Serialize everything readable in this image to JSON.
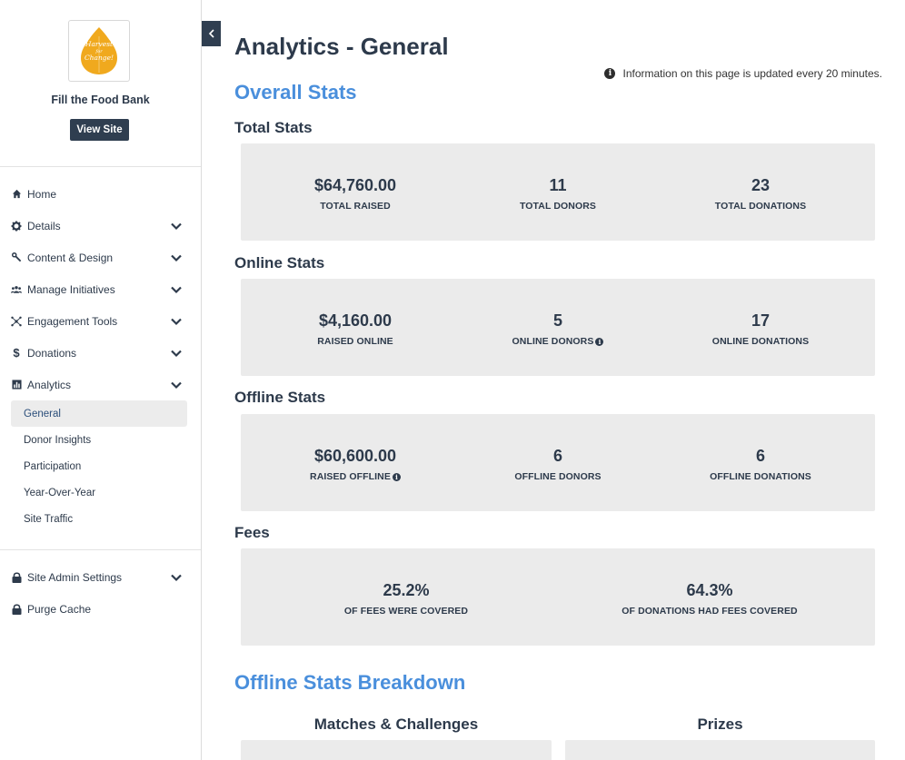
{
  "sidebar": {
    "org_name": "Fill the Food Bank",
    "logo_text": [
      "Harvest",
      "for",
      "Change!"
    ],
    "view_site_label": "View Site",
    "nav": [
      {
        "label": "Home",
        "icon": "home-icon"
      },
      {
        "label": "Details",
        "icon": "gear-icon"
      },
      {
        "label": "Content & Design",
        "icon": "wrench-icon"
      },
      {
        "label": "Manage Initiatives",
        "icon": "users-icon"
      },
      {
        "label": "Engagement Tools",
        "icon": "network-icon"
      },
      {
        "label": "Donations",
        "icon": "dollar-icon"
      },
      {
        "label": "Analytics",
        "icon": "bar-chart-icon"
      }
    ],
    "analytics_sub": [
      "General",
      "Donor Insights",
      "Participation",
      "Year-Over-Year",
      "Site Traffic"
    ],
    "nav_bottom": [
      {
        "label": "Site Admin Settings",
        "icon": "lock-icon"
      },
      {
        "label": "Purge Cache",
        "icon": "lock-icon"
      }
    ]
  },
  "main": {
    "title": "Analytics - General",
    "info_note": "Information on this page is updated every 20 minutes.",
    "overall_title": "Overall Stats",
    "total": {
      "title": "Total Stats",
      "stats": [
        {
          "value": "$64,760.00",
          "label": "TOTAL RAISED"
        },
        {
          "value": "11",
          "label": "TOTAL DONORS"
        },
        {
          "value": "23",
          "label": "TOTAL DONATIONS"
        }
      ]
    },
    "online": {
      "title": "Online Stats",
      "stats": [
        {
          "value": "$4,160.00",
          "label": "RAISED ONLINE"
        },
        {
          "value": "5",
          "label": "ONLINE DONORS"
        },
        {
          "value": "17",
          "label": "ONLINE DONATIONS"
        }
      ]
    },
    "offline": {
      "title": "Offline Stats",
      "stats": [
        {
          "value": "$60,600.00",
          "label": "RAISED OFFLINE"
        },
        {
          "value": "6",
          "label": "OFFLINE DONORS"
        },
        {
          "value": "6",
          "label": "OFFLINE DONATIONS"
        }
      ]
    },
    "fees": {
      "title": "Fees",
      "stats": [
        {
          "value": "25.2%",
          "label": "OF FEES WERE COVERED"
        },
        {
          "value": "64.3%",
          "label": "OF DONATIONS HAD FEES COVERED"
        }
      ]
    },
    "breakdown_title": "Offline Stats Breakdown",
    "breakdown_cols": [
      "Matches & Challenges",
      "Prizes"
    ]
  },
  "colors": {
    "accent": "#4a8fdc",
    "dark": "#2f3e50",
    "panel": "#ebebeb",
    "logo": "#f0a91e"
  }
}
